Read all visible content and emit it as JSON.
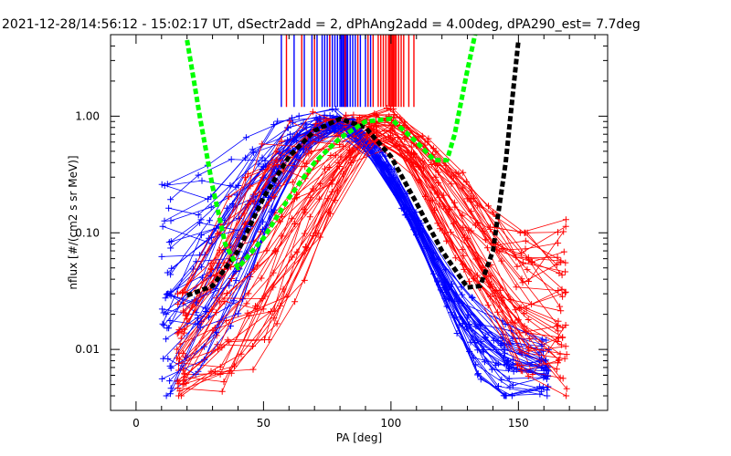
{
  "chart_data": {
    "type": "line",
    "title": "2021-12-28/14:56:12 - 15:02:17 UT, dSectr2add = 2, dPhAng2add = 4.00deg, dPA290_est=   7.7deg",
    "xlabel": "PA [deg]",
    "ylabel": "nflux [#/(cm2 s sr MeV)]",
    "xlim": [
      -10,
      185
    ],
    "ylim": [
      0.003,
      5.0
    ],
    "yscale": "log",
    "grid": false,
    "x_ticks": [
      0,
      50,
      100,
      150
    ],
    "x_tick_labels": [
      "0",
      "50",
      "100",
      "150"
    ],
    "y_ticks": [
      0.01,
      0.1,
      1.0
    ],
    "y_tick_labels": [
      "0.01",
      "0.10",
      "1.00"
    ],
    "colors": {
      "blue": "#0000ff",
      "red": "#ff0000",
      "black_fit": "#000000",
      "green_fit": "#00ff00",
      "axes": "#000000"
    },
    "series": [
      {
        "color": "blue",
        "style": "thin-lines-plus-markers",
        "count": 40,
        "envelope_x": [
          12,
          20,
          30,
          40,
          50,
          60,
          70,
          80,
          90,
          100,
          110,
          120,
          130,
          140,
          150,
          160
        ],
        "envelope_y_low": [
          0.004,
          0.005,
          0.009,
          0.02,
          0.1,
          0.3,
          0.6,
          0.8,
          0.55,
          0.25,
          0.09,
          0.03,
          0.008,
          0.004,
          0.004,
          0.004
        ],
        "envelope_y_high": [
          0.26,
          0.3,
          0.4,
          0.6,
          0.8,
          1.0,
          1.15,
          1.15,
          0.8,
          0.4,
          0.15,
          0.06,
          0.03,
          0.02,
          0.015,
          0.012
        ]
      },
      {
        "color": "red",
        "style": "thin-lines-plus-markers",
        "count": 45,
        "envelope_x": [
          18,
          30,
          40,
          50,
          60,
          70,
          80,
          90,
          100,
          110,
          120,
          130,
          140,
          150,
          160,
          167
        ],
        "envelope_y_low": [
          0.004,
          0.004,
          0.005,
          0.008,
          0.02,
          0.06,
          0.25,
          0.6,
          0.6,
          0.3,
          0.1,
          0.04,
          0.02,
          0.007,
          0.004,
          0.004
        ],
        "envelope_y_high": [
          0.03,
          0.1,
          0.3,
          0.6,
          0.9,
          1.1,
          1.1,
          1.05,
          1.2,
          0.8,
          0.5,
          0.3,
          0.15,
          0.1,
          0.1,
          0.13
        ]
      }
    ],
    "fits": [
      {
        "color": "black_fit",
        "style": "thick-dashed",
        "x": [
          20,
          30,
          40,
          50,
          60,
          70,
          80,
          90,
          100,
          110,
          120,
          130,
          135,
          140,
          145,
          150
        ],
        "y": [
          0.029,
          0.035,
          0.07,
          0.2,
          0.45,
          0.75,
          0.95,
          0.8,
          0.45,
          0.18,
          0.07,
          0.034,
          0.035,
          0.07,
          0.4,
          4.5
        ]
      },
      {
        "color": "green_fit",
        "style": "thick-dashed",
        "x": [
          20,
          25,
          30,
          35,
          40,
          50,
          60,
          70,
          80,
          90,
          100,
          110,
          117,
          122,
          125,
          130,
          133
        ],
        "y": [
          4.5,
          1.0,
          0.25,
          0.08,
          0.05,
          0.09,
          0.2,
          0.4,
          0.65,
          0.9,
          0.95,
          0.6,
          0.42,
          0.42,
          0.7,
          2.5,
          5.0
        ]
      }
    ],
    "vertical_markers": {
      "y_from": 1.2,
      "blue_x": [
        57,
        62,
        66,
        69,
        71,
        73,
        74,
        75,
        76,
        77,
        78,
        79,
        80,
        80.5,
        81,
        81.5,
        82,
        82.5,
        83,
        84,
        85,
        86,
        88,
        90,
        92
      ],
      "red_x": [
        59,
        65,
        70,
        76,
        82,
        87,
        91,
        93,
        95,
        96,
        97,
        98,
        99,
        99.5,
        100,
        100.5,
        101,
        101.5,
        102,
        103,
        104,
        105,
        107,
        109
      ]
    }
  }
}
